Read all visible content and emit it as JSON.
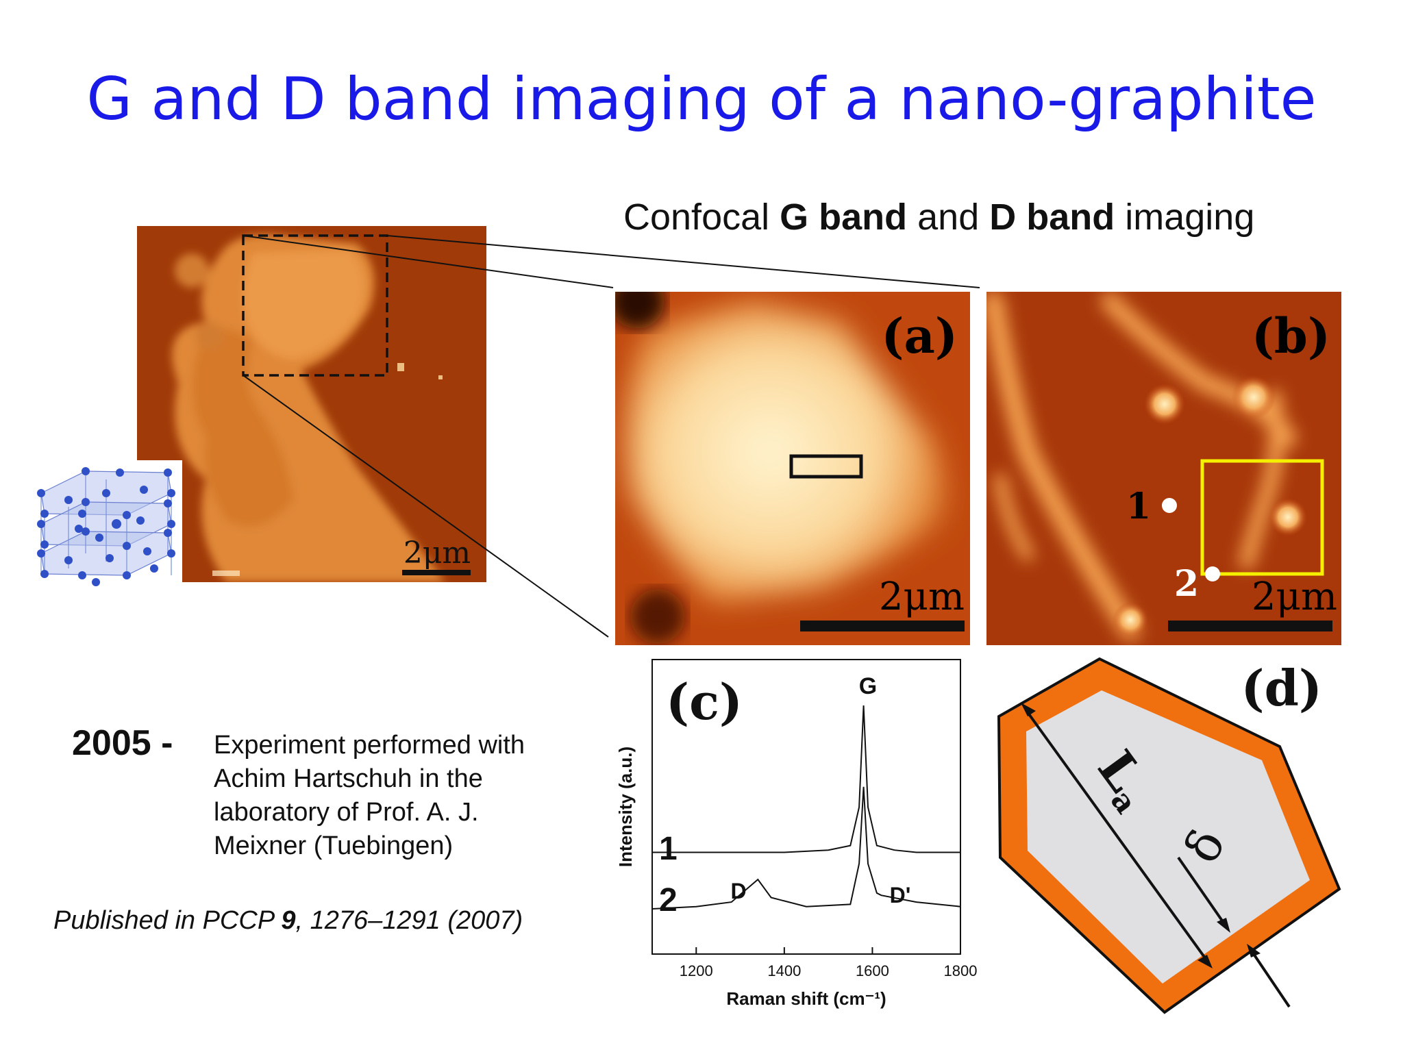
{
  "slide": {
    "title": "G and D band imaging of a nano-graphite",
    "subtitle": {
      "part1": "Confocal ",
      "bold1": "G band",
      "part2": " and ",
      "bold2": "D band",
      "part3": " imaging"
    }
  },
  "overview_image": {
    "scale_label": "2μm"
  },
  "panels": {
    "a": {
      "label": "(a)",
      "scale_label": "2μm"
    },
    "b": {
      "label": "(b)",
      "scale_label": "2μm",
      "point1": "1",
      "point2": "2"
    },
    "c": {
      "label": "(c)",
      "peak_labels": {
        "g": "G",
        "d": "D",
        "d_prime": "D'"
      },
      "trace_labels": [
        "1",
        "2"
      ]
    },
    "d": {
      "label": "(d)",
      "length_label": "L",
      "length_subscript": "a",
      "width_label": "δ"
    }
  },
  "chart_data": {
    "type": "line",
    "title": "",
    "xlabel": "Raman shift (cm⁻¹)",
    "ylabel": "Intensity (a.u.)",
    "xlim": [
      1100,
      1800
    ],
    "xticks": [
      1200,
      1400,
      1600,
      1800
    ],
    "series": [
      {
        "name": "1",
        "x": [
          1100,
          1200,
          1300,
          1400,
          1500,
          1550,
          1570,
          1580,
          1590,
          1610,
          1650,
          1700,
          1800
        ],
        "values": [
          0.35,
          0.35,
          0.35,
          0.35,
          0.36,
          0.38,
          0.55,
          1.0,
          0.55,
          0.38,
          0.36,
          0.35,
          0.35
        ]
      },
      {
        "name": "2",
        "x": [
          1100,
          1200,
          1280,
          1310,
          1340,
          1370,
          1450,
          1550,
          1570,
          1580,
          1590,
          1610,
          1620,
          1700,
          1800
        ],
        "values": [
          0.1,
          0.11,
          0.13,
          0.18,
          0.23,
          0.15,
          0.11,
          0.12,
          0.3,
          0.64,
          0.3,
          0.17,
          0.16,
          0.13,
          0.11
        ]
      }
    ]
  },
  "info": {
    "year": "2005 -",
    "lines": [
      "Experiment performed with",
      "Achim Hartschuh in the",
      "laboratory of Prof. A. J.",
      "Meixner (Tuebingen)"
    ],
    "publication": {
      "prefix": "Published in PCCP ",
      "volume": "9",
      "suffix": ", 1276–1291 (2007)"
    }
  },
  "colors": {
    "title": "#1a1ae8",
    "afm_dark": "#8a2c00",
    "afm_light": "#f0a050",
    "orange_border": "#f07010",
    "highlight_box": "#f5f000"
  }
}
